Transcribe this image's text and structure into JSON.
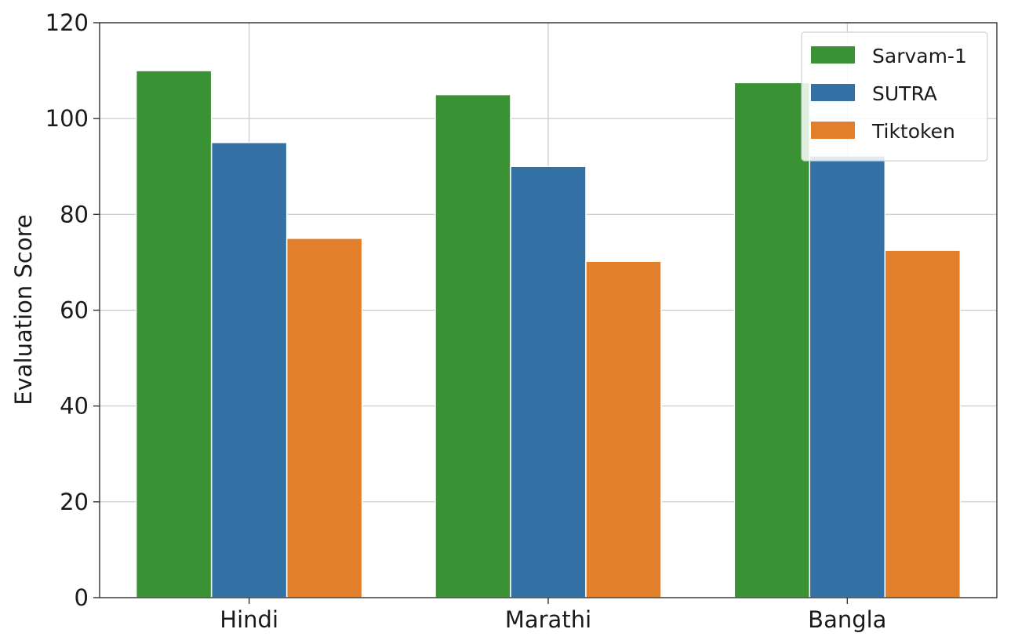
{
  "chart_data": {
    "type": "bar",
    "categories": [
      "Hindi",
      "Marathi",
      "Bangla"
    ],
    "series": [
      {
        "name": "Sarvam-1",
        "color": "#3a9234",
        "values": [
          110,
          105,
          107.5
        ]
      },
      {
        "name": "SUTRA",
        "color": "#3471a5",
        "values": [
          95,
          90,
          92.2
        ]
      },
      {
        "name": "Tiktoken",
        "color": "#e27f2a",
        "values": [
          75,
          70.2,
          72.5
        ]
      }
    ],
    "ylabel": "Evaluation Score",
    "xlabel": "",
    "ylim": [
      0,
      120
    ],
    "yticks": [
      "0",
      "20",
      "40",
      "60",
      "80",
      "100",
      "120"
    ],
    "grid": true,
    "legend_position": "top-right"
  }
}
